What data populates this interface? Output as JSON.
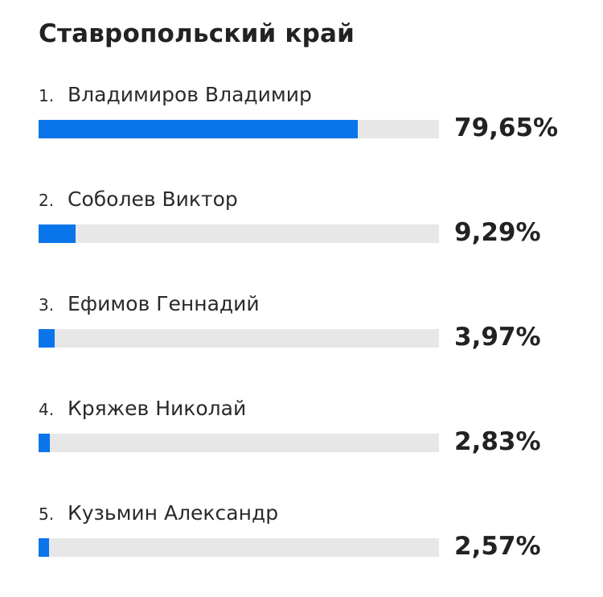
{
  "title": "Ставропольский край",
  "colors": {
    "bar_fill": "#0a75ea",
    "bar_track": "#e7e7e7",
    "text": "#222222"
  },
  "candidates": [
    {
      "num": "1.",
      "name": "Владимиров Владимир",
      "pct": "79,65%"
    },
    {
      "num": "2.",
      "name": "Соболев Виктор",
      "pct": "9,29%"
    },
    {
      "num": "3.",
      "name": "Ефимов Геннадий",
      "pct": "3,97%"
    },
    {
      "num": "4.",
      "name": "Кряжев Николай",
      "pct": "2,83%"
    },
    {
      "num": "5.",
      "name": "Кузьмин Александр",
      "pct": "2,57%"
    }
  ],
  "chart_data": {
    "type": "bar",
    "orientation": "horizontal",
    "title": "Ставропольский край",
    "categories": [
      "Владимиров Владимир",
      "Соболев Виктор",
      "Ефимов Геннадий",
      "Кряжев Николай",
      "Кузьмин Александр"
    ],
    "values": [
      79.65,
      9.29,
      3.97,
      2.83,
      2.57
    ],
    "value_labels": [
      "79,65%",
      "9,29%",
      "3,97%",
      "2,83%",
      "2,57%"
    ],
    "xlim": [
      0,
      100
    ],
    "grid": false,
    "legend": "none"
  }
}
